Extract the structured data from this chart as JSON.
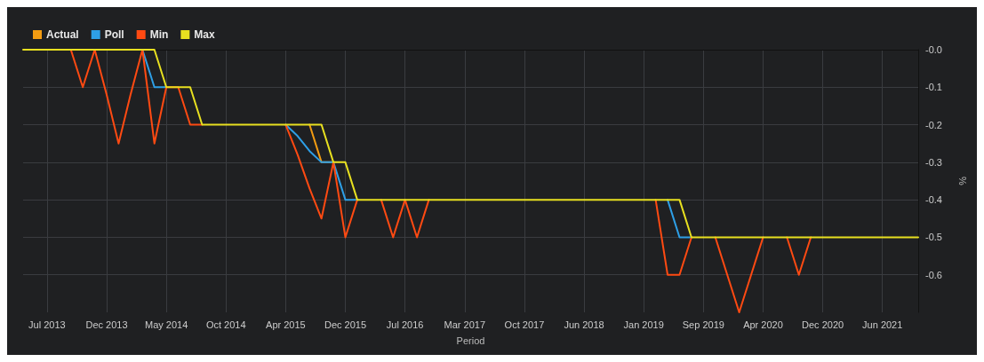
{
  "chart_data": {
    "type": "line",
    "xlabel": "Period",
    "ylabel": "%",
    "categories": [
      null,
      null,
      "Jul 2013",
      null,
      null,
      null,
      null,
      "Dec 2013",
      null,
      null,
      null,
      null,
      "May 2014",
      null,
      null,
      null,
      null,
      "Oct 2014",
      null,
      null,
      null,
      null,
      "Apr 2015",
      null,
      null,
      null,
      null,
      "Dec 2015",
      null,
      null,
      null,
      null,
      "Jul 2016",
      null,
      null,
      null,
      null,
      "Mar 2017",
      null,
      null,
      null,
      null,
      "Oct 2017",
      null,
      null,
      null,
      null,
      "Jun 2018",
      null,
      null,
      null,
      null,
      "Jan 2019",
      null,
      null,
      null,
      null,
      "Sep 2019",
      null,
      null,
      null,
      null,
      "Apr 2020",
      null,
      null,
      null,
      null,
      "Dec 2020",
      null,
      null,
      null,
      null,
      "Jun 2021",
      null,
      null,
      null
    ],
    "series": [
      {
        "name": "Actual",
        "color": "#f39c12",
        "values": [
          null,
          null,
          null,
          null,
          null,
          null,
          null,
          null,
          null,
          null,
          null,
          null,
          null,
          null,
          null,
          null,
          null,
          null,
          null,
          null,
          null,
          null,
          null,
          null,
          -0.2,
          -0.3,
          -0.3,
          null,
          null,
          null,
          null,
          null,
          null,
          null,
          null,
          null,
          null,
          null,
          null,
          null,
          null,
          null,
          null,
          null,
          null,
          null,
          null,
          null,
          null,
          null,
          null,
          null,
          null,
          null,
          null,
          null,
          null,
          null,
          null,
          null,
          null,
          null,
          null,
          null,
          null,
          null,
          null,
          null,
          null,
          null,
          null,
          null,
          null,
          null,
          null,
          null
        ]
      },
      {
        "name": "Poll",
        "color": "#2e9fe6",
        "values": [
          null,
          null,
          null,
          null,
          null,
          null,
          null,
          null,
          null,
          null,
          0,
          -0.1,
          -0.1,
          null,
          null,
          null,
          null,
          null,
          null,
          null,
          null,
          null,
          -0.2,
          -0.23,
          -0.27,
          -0.3,
          -0.3,
          -0.4,
          -0.4,
          null,
          null,
          null,
          null,
          null,
          null,
          null,
          null,
          null,
          null,
          null,
          null,
          null,
          null,
          null,
          null,
          null,
          null,
          null,
          null,
          null,
          null,
          null,
          null,
          null,
          -0.4,
          -0.5,
          -0.5,
          null,
          null,
          null,
          null,
          null,
          null,
          null,
          null,
          null,
          null,
          null,
          null,
          null,
          null,
          null,
          null,
          null,
          null,
          null
        ]
      },
      {
        "name": "Min",
        "color": "#ff4a12",
        "values": [
          null,
          null,
          null,
          null,
          0,
          -0.1,
          0,
          -0.12,
          -0.25,
          -0.12,
          0,
          -0.25,
          -0.1,
          -0.1,
          -0.2,
          -0.2,
          null,
          null,
          null,
          null,
          null,
          null,
          -0.2,
          -0.28,
          -0.37,
          -0.45,
          -0.3,
          -0.5,
          -0.4,
          null,
          -0.4,
          -0.5,
          -0.4,
          -0.5,
          -0.4,
          null,
          null,
          null,
          null,
          null,
          null,
          null,
          null,
          null,
          null,
          null,
          null,
          null,
          null,
          null,
          null,
          null,
          null,
          -0.4,
          -0.6,
          -0.6,
          -0.5,
          null,
          -0.5,
          -0.6,
          -0.7,
          -0.6,
          -0.5,
          null,
          -0.5,
          -0.6,
          -0.5,
          null,
          null,
          null,
          null,
          null,
          null,
          null,
          null,
          null
        ]
      },
      {
        "name": "Max",
        "color": "#e8e020",
        "values": [
          0,
          0,
          0,
          0,
          0,
          0,
          0,
          0,
          0,
          0,
          0,
          0,
          -0.1,
          -0.1,
          -0.1,
          -0.2,
          -0.2,
          -0.2,
          -0.2,
          -0.2,
          -0.2,
          -0.2,
          -0.2,
          -0.2,
          -0.2,
          -0.2,
          -0.3,
          -0.3,
          -0.4,
          -0.4,
          -0.4,
          -0.4,
          -0.4,
          -0.4,
          -0.4,
          -0.4,
          -0.4,
          -0.4,
          -0.4,
          -0.4,
          -0.4,
          -0.4,
          -0.4,
          -0.4,
          -0.4,
          -0.4,
          -0.4,
          -0.4,
          -0.4,
          -0.4,
          -0.4,
          -0.4,
          -0.4,
          -0.4,
          -0.4,
          -0.4,
          -0.5,
          -0.5,
          -0.5,
          -0.5,
          -0.5,
          -0.5,
          -0.5,
          -0.5,
          -0.5,
          -0.5,
          -0.5,
          -0.5,
          -0.5,
          -0.5,
          -0.5,
          -0.5,
          -0.5,
          -0.5,
          -0.5,
          -0.5
        ]
      }
    ],
    "ylim": [
      -0.7,
      0
    ],
    "yticks": [
      {
        "value": 0,
        "label": "-0.0"
      },
      -0.1,
      -0.2,
      -0.3,
      -0.4,
      -0.5,
      -0.6
    ],
    "grid": true,
    "legend": "top left",
    "marker": "none",
    "line_style": "solid"
  }
}
